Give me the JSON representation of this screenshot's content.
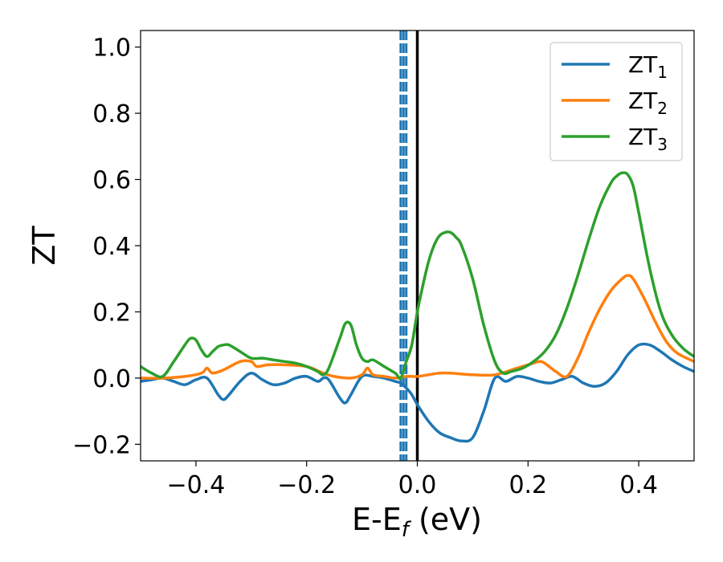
{
  "chart_data": {
    "type": "line",
    "xlabel_main": "E-E",
    "xlabel_sub": "f",
    "xlabel_unit": " (eV)",
    "ylabel": "ZT",
    "xlim": [
      -0.5,
      0.5
    ],
    "ylim": [
      -0.25,
      1.05
    ],
    "xticks": [
      -0.4,
      -0.2,
      0.0,
      0.2,
      0.4
    ],
    "xtick_labels": [
      "−0.4",
      "−0.2",
      "0.0",
      "0.2",
      "0.4"
    ],
    "yticks": [
      -0.2,
      0.0,
      0.2,
      0.4,
      0.6,
      0.8,
      1.0
    ],
    "ytick_labels": [
      "−0.2",
      "0.0",
      "0.2",
      "0.4",
      "0.6",
      "0.8",
      "1.0"
    ],
    "legend_position": "top-right",
    "vlines": [
      {
        "x": 0.0,
        "style": "solid",
        "color": "#000000"
      },
      {
        "x": -0.03,
        "style": "dashed",
        "color": "#1f77b4"
      },
      {
        "x": -0.025,
        "style": "dashed",
        "color": "#1f77b4"
      },
      {
        "x": -0.02,
        "style": "dashed",
        "color": "#1f77b4"
      }
    ],
    "series": [
      {
        "name": "ZT",
        "name_sub": "1",
        "color": "#1f77b4",
        "x": [
          -0.5,
          -0.48,
          -0.46,
          -0.44,
          -0.42,
          -0.4,
          -0.38,
          -0.36,
          -0.35,
          -0.34,
          -0.32,
          -0.3,
          -0.28,
          -0.26,
          -0.24,
          -0.22,
          -0.2,
          -0.18,
          -0.17,
          -0.16,
          -0.14,
          -0.13,
          -0.12,
          -0.1,
          -0.08,
          -0.06,
          -0.04,
          -0.03,
          -0.02,
          -0.01,
          0.0,
          0.02,
          0.04,
          0.06,
          0.08,
          0.1,
          0.12,
          0.14,
          0.16,
          0.18,
          0.2,
          0.22,
          0.24,
          0.26,
          0.28,
          0.3,
          0.32,
          0.34,
          0.36,
          0.38,
          0.4,
          0.42,
          0.44,
          0.46,
          0.48,
          0.5
        ],
        "y": [
          -0.01,
          -0.005,
          0.0,
          -0.01,
          -0.02,
          -0.005,
          0.0,
          -0.05,
          -0.065,
          -0.05,
          -0.01,
          0.015,
          -0.005,
          -0.02,
          -0.015,
          0.0,
          0.005,
          -0.01,
          0.0,
          -0.005,
          -0.06,
          -0.075,
          -0.05,
          0.005,
          0.005,
          0.0,
          -0.01,
          -0.015,
          -0.03,
          -0.05,
          -0.08,
          -0.13,
          -0.165,
          -0.18,
          -0.19,
          -0.18,
          -0.1,
          0.0,
          -0.01,
          0.005,
          0.0,
          -0.01,
          -0.015,
          -0.005,
          0.005,
          -0.015,
          -0.025,
          -0.015,
          0.02,
          0.07,
          0.1,
          0.1,
          0.08,
          0.055,
          0.035,
          0.02
        ]
      },
      {
        "name": "ZT",
        "name_sub": "2",
        "color": "#ff7f0e",
        "x": [
          -0.5,
          -0.46,
          -0.42,
          -0.39,
          -0.38,
          -0.37,
          -0.35,
          -0.32,
          -0.3,
          -0.29,
          -0.27,
          -0.24,
          -0.2,
          -0.17,
          -0.15,
          -0.12,
          -0.1,
          -0.09,
          -0.08,
          -0.06,
          -0.04,
          -0.02,
          0.0,
          0.02,
          0.04,
          0.06,
          0.1,
          0.14,
          0.18,
          0.2,
          0.22,
          0.23,
          0.25,
          0.27,
          0.29,
          0.31,
          0.33,
          0.35,
          0.37,
          0.38,
          0.39,
          0.41,
          0.43,
          0.45,
          0.47,
          0.5
        ],
        "y": [
          0.0,
          0.0,
          0.005,
          0.015,
          0.03,
          0.015,
          0.025,
          0.05,
          0.05,
          0.035,
          0.04,
          0.04,
          0.035,
          0.015,
          0.005,
          0.0,
          0.01,
          0.03,
          0.01,
          0.005,
          0.0,
          0.005,
          0.005,
          0.01,
          0.015,
          0.015,
          0.01,
          0.01,
          0.03,
          0.04,
          0.05,
          0.045,
          0.02,
          0.005,
          0.06,
          0.14,
          0.21,
          0.265,
          0.3,
          0.31,
          0.3,
          0.24,
          0.17,
          0.11,
          0.075,
          0.05
        ]
      },
      {
        "name": "ZT",
        "name_sub": "3",
        "color": "#2ca02c",
        "x": [
          -0.5,
          -0.48,
          -0.46,
          -0.44,
          -0.42,
          -0.41,
          -0.4,
          -0.39,
          -0.38,
          -0.37,
          -0.36,
          -0.35,
          -0.34,
          -0.32,
          -0.3,
          -0.28,
          -0.26,
          -0.24,
          -0.22,
          -0.2,
          -0.18,
          -0.17,
          -0.16,
          -0.14,
          -0.13,
          -0.12,
          -0.11,
          -0.1,
          -0.09,
          -0.08,
          -0.06,
          -0.04,
          -0.03,
          -0.02,
          -0.01,
          0.0,
          0.01,
          0.02,
          0.03,
          0.04,
          0.05,
          0.06,
          0.07,
          0.08,
          0.1,
          0.12,
          0.14,
          0.155,
          0.17,
          0.19,
          0.21,
          0.23,
          0.25,
          0.27,
          0.29,
          0.31,
          0.33,
          0.35,
          0.36,
          0.37,
          0.38,
          0.39,
          0.4,
          0.42,
          0.44,
          0.46,
          0.48,
          0.5
        ],
        "y": [
          0.035,
          0.015,
          0.005,
          0.05,
          0.1,
          0.12,
          0.115,
          0.085,
          0.065,
          0.08,
          0.095,
          0.1,
          0.1,
          0.08,
          0.06,
          0.06,
          0.055,
          0.05,
          0.045,
          0.035,
          0.02,
          0.01,
          0.03,
          0.12,
          0.165,
          0.16,
          0.1,
          0.06,
          0.05,
          0.055,
          0.035,
          0.015,
          0.0,
          0.05,
          0.1,
          0.2,
          0.28,
          0.35,
          0.4,
          0.43,
          0.44,
          0.44,
          0.425,
          0.4,
          0.3,
          0.16,
          0.05,
          0.015,
          0.02,
          0.03,
          0.05,
          0.08,
          0.13,
          0.21,
          0.31,
          0.42,
          0.52,
          0.59,
          0.61,
          0.62,
          0.615,
          0.58,
          0.5,
          0.33,
          0.2,
          0.13,
          0.09,
          0.065
        ]
      }
    ]
  }
}
